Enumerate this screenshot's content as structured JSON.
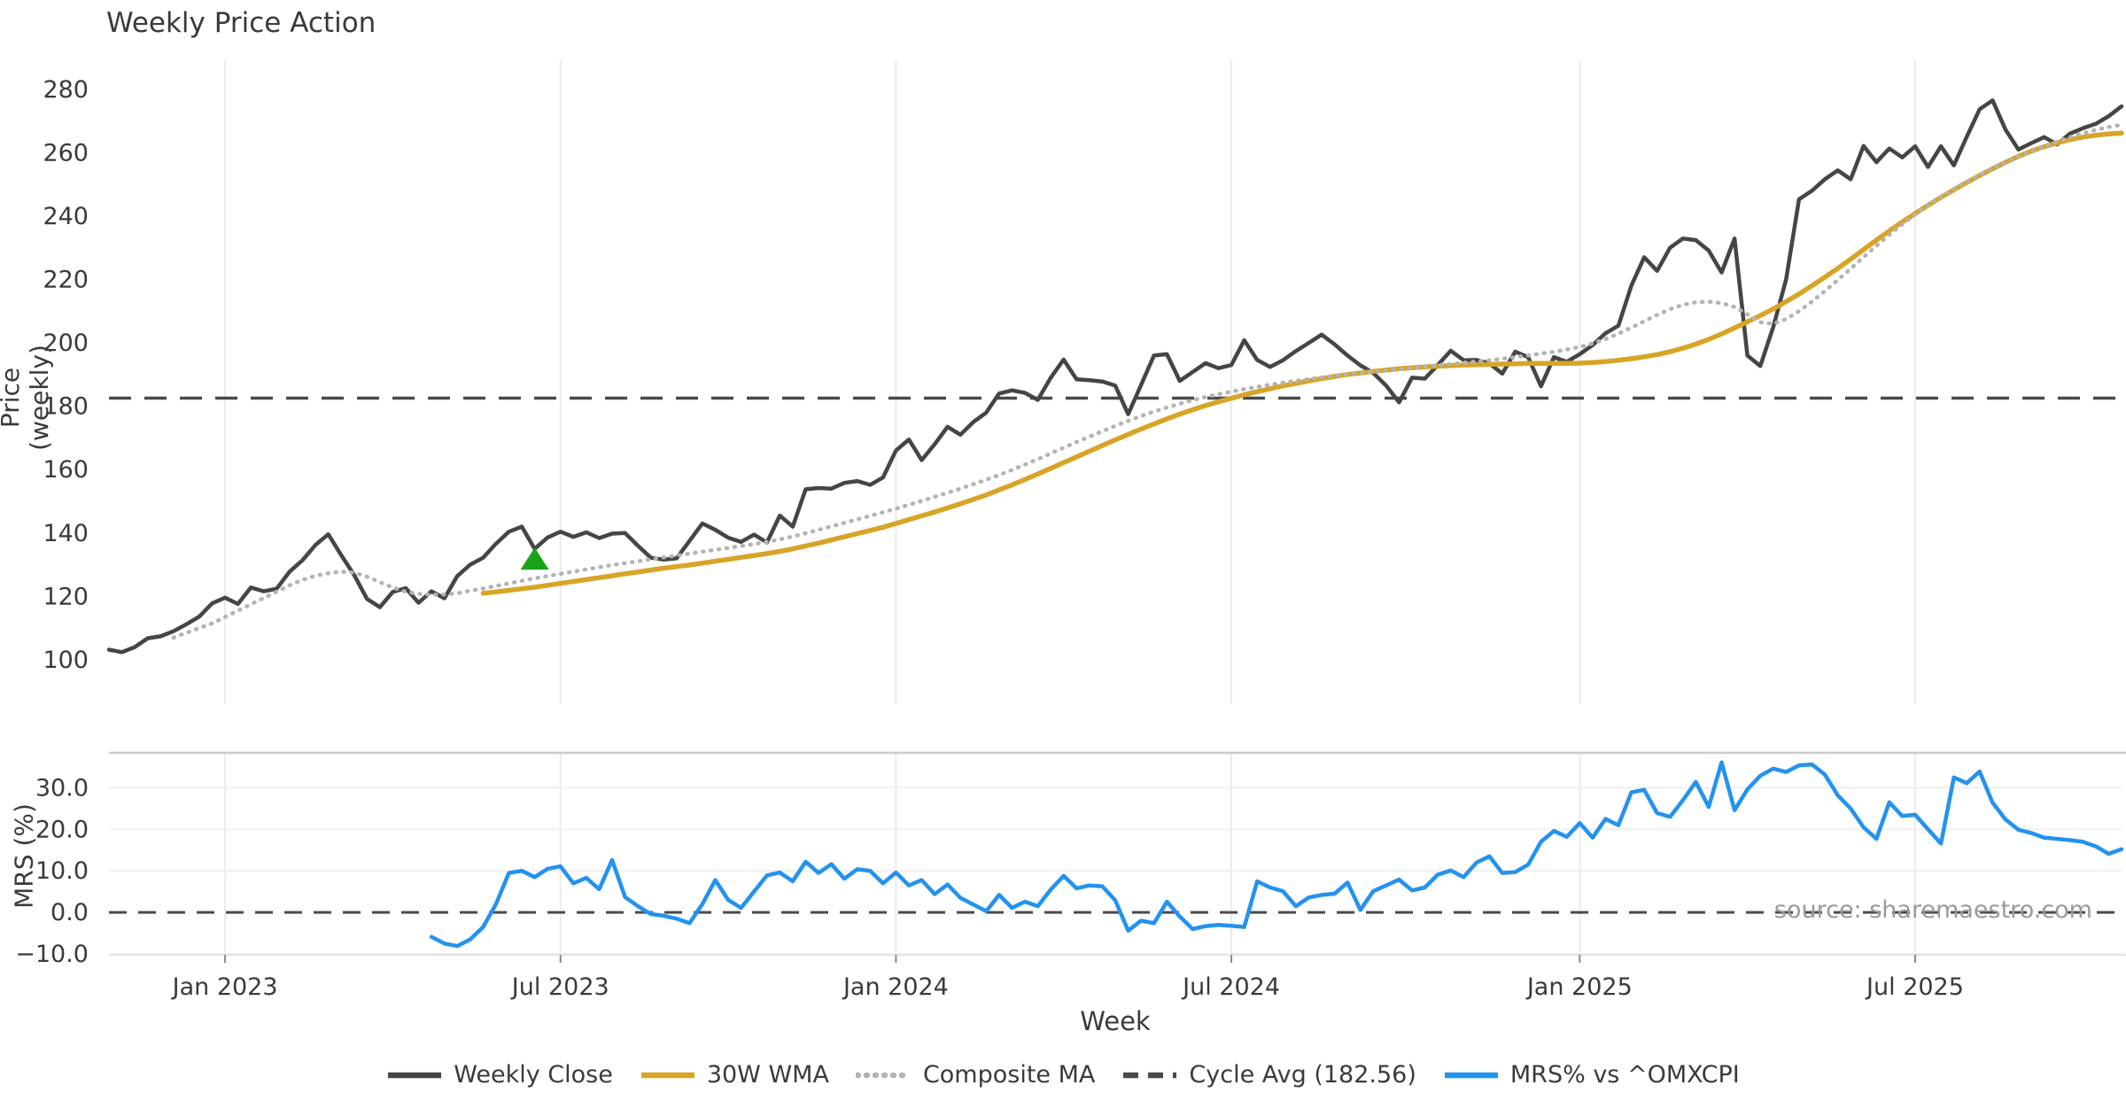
{
  "title": "Weekly Price Action",
  "watermark": "source: sharemaestro.com",
  "axis_labels": {
    "price_y": "Price (weekly)",
    "mrs_y": "MRS (%)",
    "x": "Week"
  },
  "colors": {
    "close": "#454545",
    "wma": "#d7a426",
    "composite": "#b3b3b3",
    "cycle_avg": "#4a4a4a",
    "mrs": "#2492ee",
    "signal_marker": "#18a31b",
    "grid": "#ebebeb",
    "spine": "#cccccc",
    "tick_text": "#3a3a3a",
    "zero_line": "#4a4a4a"
  },
  "legend": {
    "items": [
      {
        "label": "Weekly Close",
        "style": "solid",
        "color": "#454545"
      },
      {
        "label": "30W WMA",
        "style": "solid",
        "color": "#d7a426"
      },
      {
        "label": "Composite MA",
        "style": "dotted",
        "color": "#b3b3b3"
      },
      {
        "label": "Cycle Avg (182.56)",
        "style": "dashed",
        "color": "#4a4a4a"
      },
      {
        "label": "MRS% vs ^OMXCPI",
        "style": "solid",
        "color": "#2492ee"
      }
    ]
  },
  "chart_data": {
    "type": "line",
    "title": "Weekly Price Action",
    "xlabel": "Week",
    "x_points": 157,
    "x_tick_labels": [
      {
        "label": "Jan 2023",
        "index": 9
      },
      {
        "label": "Jul 2023",
        "index": 35
      },
      {
        "label": "Jan 2024",
        "index": 61
      },
      {
        "label": "Jul 2024",
        "index": 87
      },
      {
        "label": "Jan 2025",
        "index": 114
      },
      {
        "label": "Jul 2025",
        "index": 140
      }
    ],
    "panels": [
      {
        "id": "price",
        "ylabel": "Price (weekly)",
        "ylim": [
          86,
          290
        ],
        "grid": "vertical",
        "yticks": [
          {
            "label": "280",
            "value": 280
          },
          {
            "label": "260",
            "value": 260
          },
          {
            "label": "240",
            "value": 240
          },
          {
            "label": "220",
            "value": 220
          },
          {
            "label": "200",
            "value": 200
          },
          {
            "label": "180",
            "value": 180
          },
          {
            "label": "160",
            "value": 160
          },
          {
            "label": "140",
            "value": 140
          },
          {
            "label": "120",
            "value": 120
          },
          {
            "label": "100",
            "value": 100
          }
        ]
      },
      {
        "id": "mrs",
        "ylabel": "MRS (%)",
        "ylim": [
          -10.2,
          38.4
        ],
        "grid": "both",
        "yticks": [
          {
            "label": "30.0",
            "value": 30
          },
          {
            "label": "20.0",
            "value": 20
          },
          {
            "label": "10.0",
            "value": 10
          },
          {
            "label": "0.0",
            "value": 0
          },
          {
            "label": "−10.0",
            "value": -10
          }
        ]
      }
    ],
    "cycle_avg": {
      "panel": "price",
      "value": 182.56,
      "label": "Cycle Avg (182.56)"
    },
    "zero_line": {
      "panel": "mrs",
      "value": 0
    },
    "signal_marker": {
      "shape": "triangle-up",
      "panel": "price",
      "index": 33,
      "value": 131.5,
      "color": "#18a31b"
    },
    "legend_position": "bottom-center",
    "series": [
      {
        "name": "Weekly Close",
        "panel": "price",
        "style": "solid",
        "color": "#454545",
        "width": 4.5,
        "values": [
          103.2,
          102.4,
          104.0,
          106.8,
          107.4,
          109.0,
          111.2,
          113.6,
          117.8,
          119.6,
          117.6,
          122.8,
          121.6,
          122.4,
          127.8,
          131.4,
          136.2,
          139.6,
          133.0,
          126.8,
          119.2,
          116.6,
          121.4,
          122.6,
          118.0,
          121.6,
          119.4,
          126.4,
          130.0,
          132.2,
          136.6,
          140.4,
          142.0,
          135.0,
          138.6,
          140.4,
          138.8,
          140.2,
          138.4,
          139.8,
          140.0,
          136.0,
          132.2,
          131.6,
          132.0,
          137.5,
          143.0,
          141.0,
          138.5,
          137.2,
          139.5,
          137.0,
          145.5,
          142.0,
          153.8,
          154.2,
          154.0,
          155.8,
          156.4,
          155.2,
          157.5,
          166.0,
          169.5,
          163.0,
          168.0,
          173.5,
          171.0,
          175.0,
          178.0,
          184.0,
          185.0,
          184.2,
          182.0,
          189.0,
          194.7,
          188.5,
          188.2,
          187.8,
          186.5,
          177.5,
          186.7,
          196.0,
          196.4,
          188.0,
          190.8,
          193.6,
          192.0,
          193.0,
          200.8,
          194.6,
          192.4,
          194.5,
          197.4,
          200.0,
          202.6,
          199.5,
          196.0,
          192.9,
          190.5,
          186.5,
          181.2,
          189.0,
          188.7,
          193.0,
          197.5,
          194.5,
          194.6,
          193.5,
          190.3,
          197.2,
          195.5,
          186.3,
          195.5,
          194.0,
          196.4,
          199.3,
          203.0,
          205.4,
          218.0,
          227.0,
          222.7,
          230.0,
          232.9,
          232.4,
          229.1,
          222.2,
          232.9,
          196.0,
          192.7,
          205.0,
          220.0,
          245.3,
          248.0,
          251.6,
          254.4,
          251.6,
          262.1,
          257.0,
          261.3,
          258.5,
          262.0,
          255.5,
          262.0,
          256.0,
          265.0,
          273.7,
          276.5,
          267.3,
          261.0,
          263.0,
          264.9,
          262.6,
          266.0,
          267.7,
          269.1,
          271.5,
          274.6
        ]
      },
      {
        "name": "30W WMA",
        "panel": "price",
        "style": "solid",
        "color": "#d7a426",
        "width": 5.5,
        "values": [
          null,
          null,
          null,
          null,
          null,
          null,
          null,
          null,
          null,
          null,
          null,
          null,
          null,
          null,
          null,
          null,
          null,
          null,
          null,
          null,
          null,
          null,
          null,
          null,
          null,
          null,
          null,
          null,
          null,
          121.0,
          121.4,
          121.9,
          122.4,
          122.9,
          123.5,
          124.1,
          124.7,
          125.3,
          125.9,
          126.5,
          127.1,
          127.7,
          128.3,
          128.9,
          129.4,
          129.9,
          130.5,
          131.1,
          131.7,
          132.3,
          132.9,
          133.5,
          134.2,
          135.0,
          135.9,
          136.8,
          137.8,
          138.8,
          139.8,
          140.8,
          141.8,
          143.0,
          144.2,
          145.4,
          146.6,
          147.9,
          149.2,
          150.6,
          152.0,
          153.6,
          155.2,
          156.9,
          158.6,
          160.4,
          162.2,
          164.0,
          165.8,
          167.6,
          169.4,
          171.1,
          172.8,
          174.4,
          176.0,
          177.5,
          178.9,
          180.2,
          181.4,
          182.5,
          183.6,
          184.6,
          185.5,
          186.4,
          187.2,
          188.0,
          188.7,
          189.4,
          190.0,
          190.5,
          191.0,
          191.4,
          191.8,
          192.1,
          192.4,
          192.6,
          192.8,
          193.0,
          193.1,
          193.2,
          193.3,
          193.4,
          193.5,
          193.5,
          193.5,
          193.5,
          193.6,
          193.8,
          194.1,
          194.5,
          195.0,
          195.6,
          196.3,
          197.2,
          198.3,
          199.6,
          201.1,
          202.8,
          204.7,
          206.6,
          208.6,
          210.7,
          213.0,
          215.4,
          218.0,
          220.7,
          223.5,
          226.4,
          229.4,
          232.4,
          235.3,
          238.1,
          240.8,
          243.4,
          245.9,
          248.3,
          250.6,
          252.8,
          254.9,
          256.9,
          258.8,
          260.5,
          261.9,
          263.1,
          264.1,
          264.9,
          265.5,
          265.9,
          266.2
        ]
      },
      {
        "name": "Composite MA",
        "panel": "price",
        "style": "dotted",
        "color": "#b3b3b3",
        "width": 4.5,
        "values": [
          null,
          null,
          null,
          null,
          null,
          107.0,
          108.5,
          110.0,
          111.5,
          113.5,
          115.5,
          117.5,
          119.5,
          121.5,
          123.5,
          125.2,
          126.5,
          127.3,
          127.8,
          127.5,
          126.2,
          124.5,
          122.8,
          121.5,
          120.8,
          120.5,
          120.6,
          121.0,
          121.8,
          122.5,
          123.3,
          124.1,
          124.9,
          125.7,
          126.4,
          127.1,
          127.8,
          128.5,
          129.2,
          129.9,
          130.5,
          131.1,
          131.7,
          132.3,
          132.9,
          133.5,
          134.1,
          134.7,
          135.3,
          135.9,
          136.5,
          137.2,
          138.0,
          138.9,
          139.9,
          141.0,
          142.1,
          143.2,
          144.3,
          145.4,
          146.5,
          147.7,
          148.9,
          150.1,
          151.4,
          152.7,
          154.0,
          155.4,
          156.8,
          158.3,
          159.9,
          161.6,
          163.3,
          165.1,
          166.9,
          168.7,
          170.4,
          172.1,
          173.8,
          175.4,
          176.9,
          178.3,
          179.6,
          180.8,
          181.9,
          182.9,
          183.8,
          184.6,
          185.4,
          186.1,
          186.8,
          187.4,
          188.0,
          188.6,
          189.1,
          189.6,
          190.1,
          190.5,
          190.9,
          191.3,
          191.7,
          192.1,
          192.5,
          192.9,
          193.3,
          193.7,
          194.1,
          194.5,
          195.0,
          195.5,
          196.0,
          196.6,
          197.2,
          197.9,
          198.7,
          199.8,
          201.2,
          202.9,
          204.8,
          206.8,
          208.8,
          210.6,
          212.0,
          212.8,
          213.0,
          212.5,
          211.3,
          209.0,
          206.5,
          206.0,
          207.5,
          210.0,
          213.0,
          216.3,
          219.8,
          223.4,
          227.0,
          230.6,
          234.1,
          237.4,
          240.5,
          243.4,
          246.1,
          248.6,
          250.9,
          253.0,
          255.0,
          256.9,
          258.7,
          260.4,
          262.0,
          263.5,
          264.9,
          266.1,
          267.2,
          268.1,
          268.8
        ]
      },
      {
        "name": "MRS% vs ^OMXCPI",
        "panel": "mrs",
        "style": "solid",
        "color": "#2492ee",
        "width": 4.5,
        "values": [
          null,
          null,
          null,
          null,
          null,
          null,
          null,
          null,
          null,
          null,
          null,
          null,
          null,
          null,
          null,
          null,
          null,
          null,
          null,
          null,
          null,
          null,
          null,
          null,
          null,
          -5.9,
          -7.5,
          -8.1,
          -6.5,
          -3.5,
          2.0,
          9.5,
          10.0,
          8.5,
          10.5,
          11.1,
          7.0,
          8.3,
          5.6,
          12.6,
          3.7,
          1.5,
          -0.4,
          -0.8,
          -1.5,
          -2.6,
          2.0,
          7.8,
          3.0,
          1.1,
          5.0,
          8.9,
          9.6,
          7.5,
          12.2,
          9.5,
          11.6,
          8.1,
          10.4,
          10.0,
          7.0,
          9.6,
          6.5,
          7.8,
          4.4,
          6.7,
          3.5,
          1.9,
          0.3,
          4.2,
          1.1,
          2.6,
          1.5,
          5.5,
          8.8,
          5.8,
          6.5,
          6.3,
          2.9,
          -4.4,
          -2.0,
          -2.6,
          2.6,
          -1.0,
          -4.0,
          -3.3,
          -3.0,
          -3.2,
          -3.5,
          7.5,
          6.0,
          5.1,
          1.5,
          3.6,
          4.2,
          4.5,
          7.2,
          0.6,
          5.1,
          6.5,
          7.9,
          5.3,
          6.0,
          9.1,
          10.1,
          8.5,
          12.0,
          13.5,
          9.5,
          9.7,
          11.5,
          17.0,
          19.6,
          18.2,
          21.5,
          18.0,
          22.5,
          21.0,
          28.9,
          29.5,
          23.9,
          23.0,
          27.0,
          31.4,
          25.4,
          36.1,
          24.6,
          29.6,
          32.9,
          34.6,
          33.8,
          35.4,
          35.6,
          33.2,
          28.2,
          25.0,
          20.5,
          17.7,
          26.5,
          23.2,
          23.5,
          20.0,
          16.6,
          32.5,
          31.1,
          33.9,
          26.4,
          22.4,
          19.9,
          19.1,
          18.0,
          17.7,
          17.4,
          17.0,
          15.9,
          14.1,
          15.2
        ]
      }
    ]
  }
}
